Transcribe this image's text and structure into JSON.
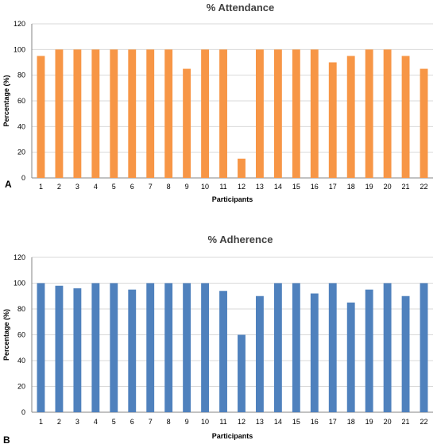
{
  "chart_data": [
    {
      "type": "bar",
      "panel_label": "A",
      "title": "% Attendance",
      "xlabel": "Participants",
      "ylabel": "Percentage (%)",
      "ylim": [
        0,
        120
      ],
      "yticks": [
        "0",
        "20",
        "40",
        "60",
        "80",
        "100",
        "120"
      ],
      "categories": [
        "1",
        "2",
        "3",
        "4",
        "5",
        "6",
        "7",
        "8",
        "9",
        "10",
        "11",
        "12",
        "13",
        "14",
        "15",
        "16",
        "17",
        "18",
        "19",
        "20",
        "21",
        "22"
      ],
      "values": [
        95,
        100,
        100,
        100,
        100,
        100,
        100,
        100,
        85,
        100,
        100,
        15,
        100,
        100,
        100,
        100,
        90,
        95,
        100,
        100,
        95,
        85
      ],
      "color": "#F79646",
      "grid": true,
      "legend": "none"
    },
    {
      "type": "bar",
      "panel_label": "B",
      "title": "% Adherence",
      "xlabel": "Participants",
      "ylabel": "Percentage (%)",
      "ylim": [
        0,
        120
      ],
      "yticks": [
        "0",
        "20",
        "40",
        "60",
        "80",
        "100",
        "120"
      ],
      "categories": [
        "1",
        "2",
        "3",
        "4",
        "5",
        "6",
        "7",
        "8",
        "9",
        "10",
        "11",
        "12",
        "13",
        "14",
        "15",
        "16",
        "17",
        "18",
        "19",
        "20",
        "21",
        "22"
      ],
      "values": [
        100,
        98,
        96,
        100,
        100,
        95,
        100,
        100,
        100,
        100,
        94,
        60,
        90,
        100,
        100,
        92,
        100,
        85,
        95,
        100,
        90,
        100
      ],
      "color": "#4F81BD",
      "grid": true,
      "legend": "none"
    }
  ]
}
